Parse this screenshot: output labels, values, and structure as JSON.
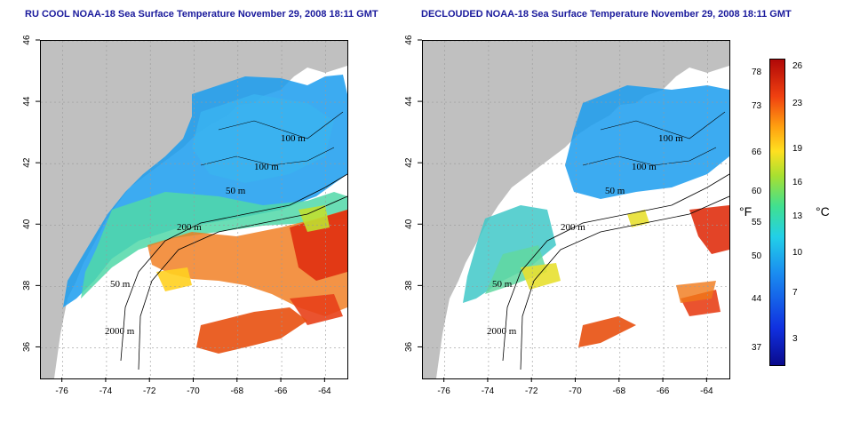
{
  "panels": [
    {
      "title": "RU COOL NOAA-18 Sea Surface Temperature November 29, 2008 18:11 GMT"
    },
    {
      "title": "DECLOUDED NOAA-18 Sea Surface Temperature November 29, 2008 18:11 GMT"
    }
  ],
  "axes": {
    "x_ticks": [
      "-76",
      "-74",
      "-72",
      "-70",
      "-68",
      "-66",
      "-64"
    ],
    "y_ticks": [
      "36",
      "38",
      "40",
      "42",
      "44",
      "46"
    ],
    "x_range": [
      -77,
      -63
    ],
    "y_range": [
      35,
      46
    ]
  },
  "contour_labels": [
    "100 m",
    "100 m",
    "50 m",
    "200 m",
    "50 m",
    "2000 m"
  ],
  "colorbar": {
    "fahrenheit_ticks": [
      "78",
      "73",
      "66",
      "60",
      "55",
      "50",
      "44",
      "37"
    ],
    "celsius_ticks": [
      "26",
      "23",
      "19",
      "16",
      "13",
      "10",
      "7",
      "3"
    ],
    "fahrenheit_unit": "°F",
    "celsius_unit": "°C"
  },
  "colors": {
    "land": "#c0c0c0",
    "title": "#1a1a9c",
    "cold": "#1a8cf0",
    "warm": "#e03010"
  }
}
